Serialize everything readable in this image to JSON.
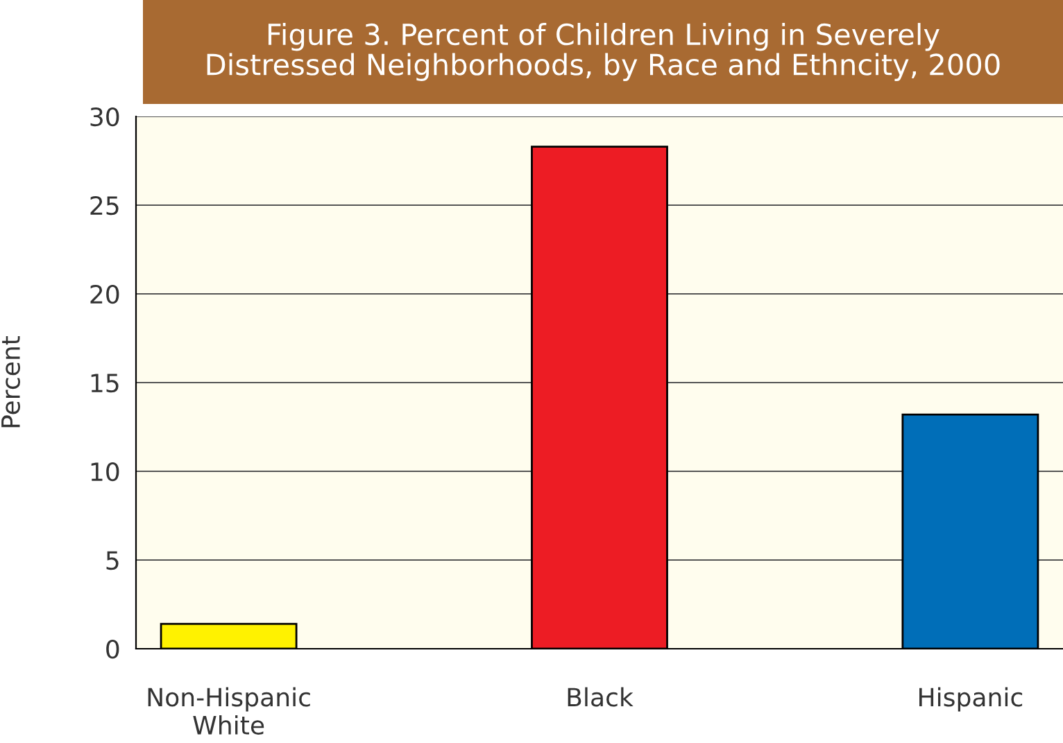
{
  "chart_data": {
    "type": "bar",
    "title": "Figure 3. Percent of Children Living in Severely\nDistressed Neighborhoods, by Race and Ethncity, 2000",
    "ylabel": "Percent",
    "categories": [
      "Non-Hispanic\nWhite",
      null,
      "Black",
      null,
      "Hispanic"
    ],
    "values": [
      1.4,
      null,
      28.3,
      null,
      13.2
    ],
    "colors": [
      "#fff200",
      "#ffffff",
      "#ed1c24",
      "#ffffff",
      "#006eb8"
    ],
    "ylim": [
      0,
      30
    ],
    "yticks": [
      0,
      5,
      10,
      15,
      20,
      25,
      30
    ],
    "grid": "y"
  }
}
